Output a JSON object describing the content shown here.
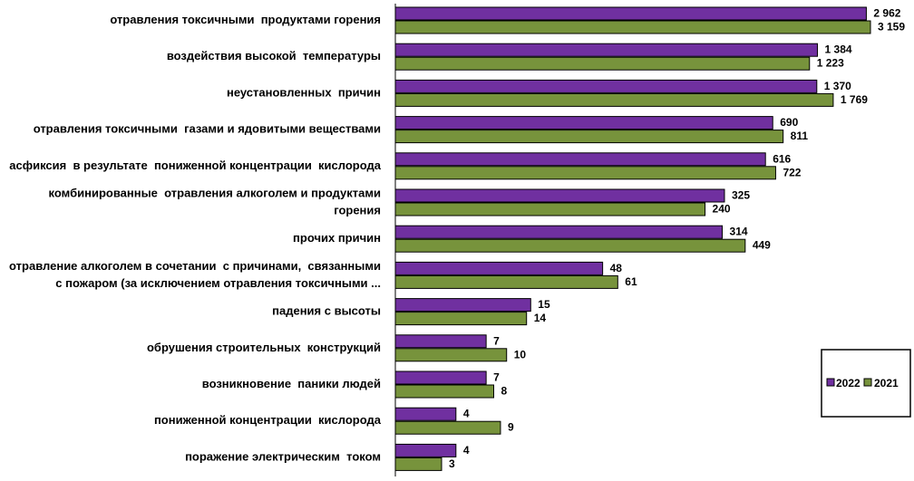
{
  "colors": {
    "series_2022": "#7030a0",
    "series_2021": "#77933c"
  },
  "chart_data": {
    "type": "bar",
    "orientation": "horizontal",
    "title": "",
    "xlabel": "",
    "ylabel": "",
    "legend_position": "right",
    "categories": [
      "отравления токсичными  продуктами горения",
      "воздействия высокой  температуры",
      "неустановленных  причин",
      "отравления токсичными  газами и ядовитыми веществами",
      "асфиксия  в результате  пониженной концентрации  кислорода",
      "комбинированные  отравления алкоголем и продуктами горения",
      "прочих причин",
      "отравление алкоголем в сочетании  с причинами,  связанными с пожаром (за исключением отравления токсичными ...",
      "падения с высоты",
      "обрушения строительных  конструкций",
      "возникновение  паники людей",
      "пониженной концентрации  кислорода",
      "поражение электрическим  током"
    ],
    "category_lines": [
      [
        "отравления токсичными  продуктами горения"
      ],
      [
        "воздействия высокой  температуры"
      ],
      [
        "неустановленных  причин"
      ],
      [
        "отравления токсичными  газами и ядовитыми веществами"
      ],
      [
        "асфиксия  в результате  пониженной концентрации  кислорода"
      ],
      [
        "комбинированные  отравления алкоголем и продуктами",
        "горения"
      ],
      [
        "прочих причин"
      ],
      [
        "отравление алкоголем в сочетании  с причинами,  связанными",
        "с пожаром (за исключением отравления токсичными ..."
      ],
      [
        "падения с высоты"
      ],
      [
        "обрушения строительных  конструкций"
      ],
      [
        "возникновение  паники людей"
      ],
      [
        "пониженной концентрации  кислорода"
      ],
      [
        "поражение электрическим  током"
      ]
    ],
    "series": [
      {
        "name": "2022",
        "values": [
          2962,
          1384,
          1370,
          690,
          616,
          325,
          314,
          48,
          15,
          7,
          7,
          4,
          4
        ],
        "labels": [
          "2 962",
          "1 384",
          "1 370",
          "690",
          "616",
          "325",
          "314",
          "48",
          "15",
          "7",
          "7",
          "4",
          "4"
        ]
      },
      {
        "name": "2021",
        "values": [
          3159,
          1223,
          1769,
          811,
          722,
          240,
          449,
          61,
          14,
          10,
          8,
          9,
          3
        ],
        "labels": [
          "3 159",
          "1 223",
          "1 769",
          "811",
          "722",
          "240",
          "449",
          "61",
          "14",
          "10",
          "8",
          "9",
          "3"
        ]
      }
    ],
    "x_scale": "log",
    "grid": false
  }
}
